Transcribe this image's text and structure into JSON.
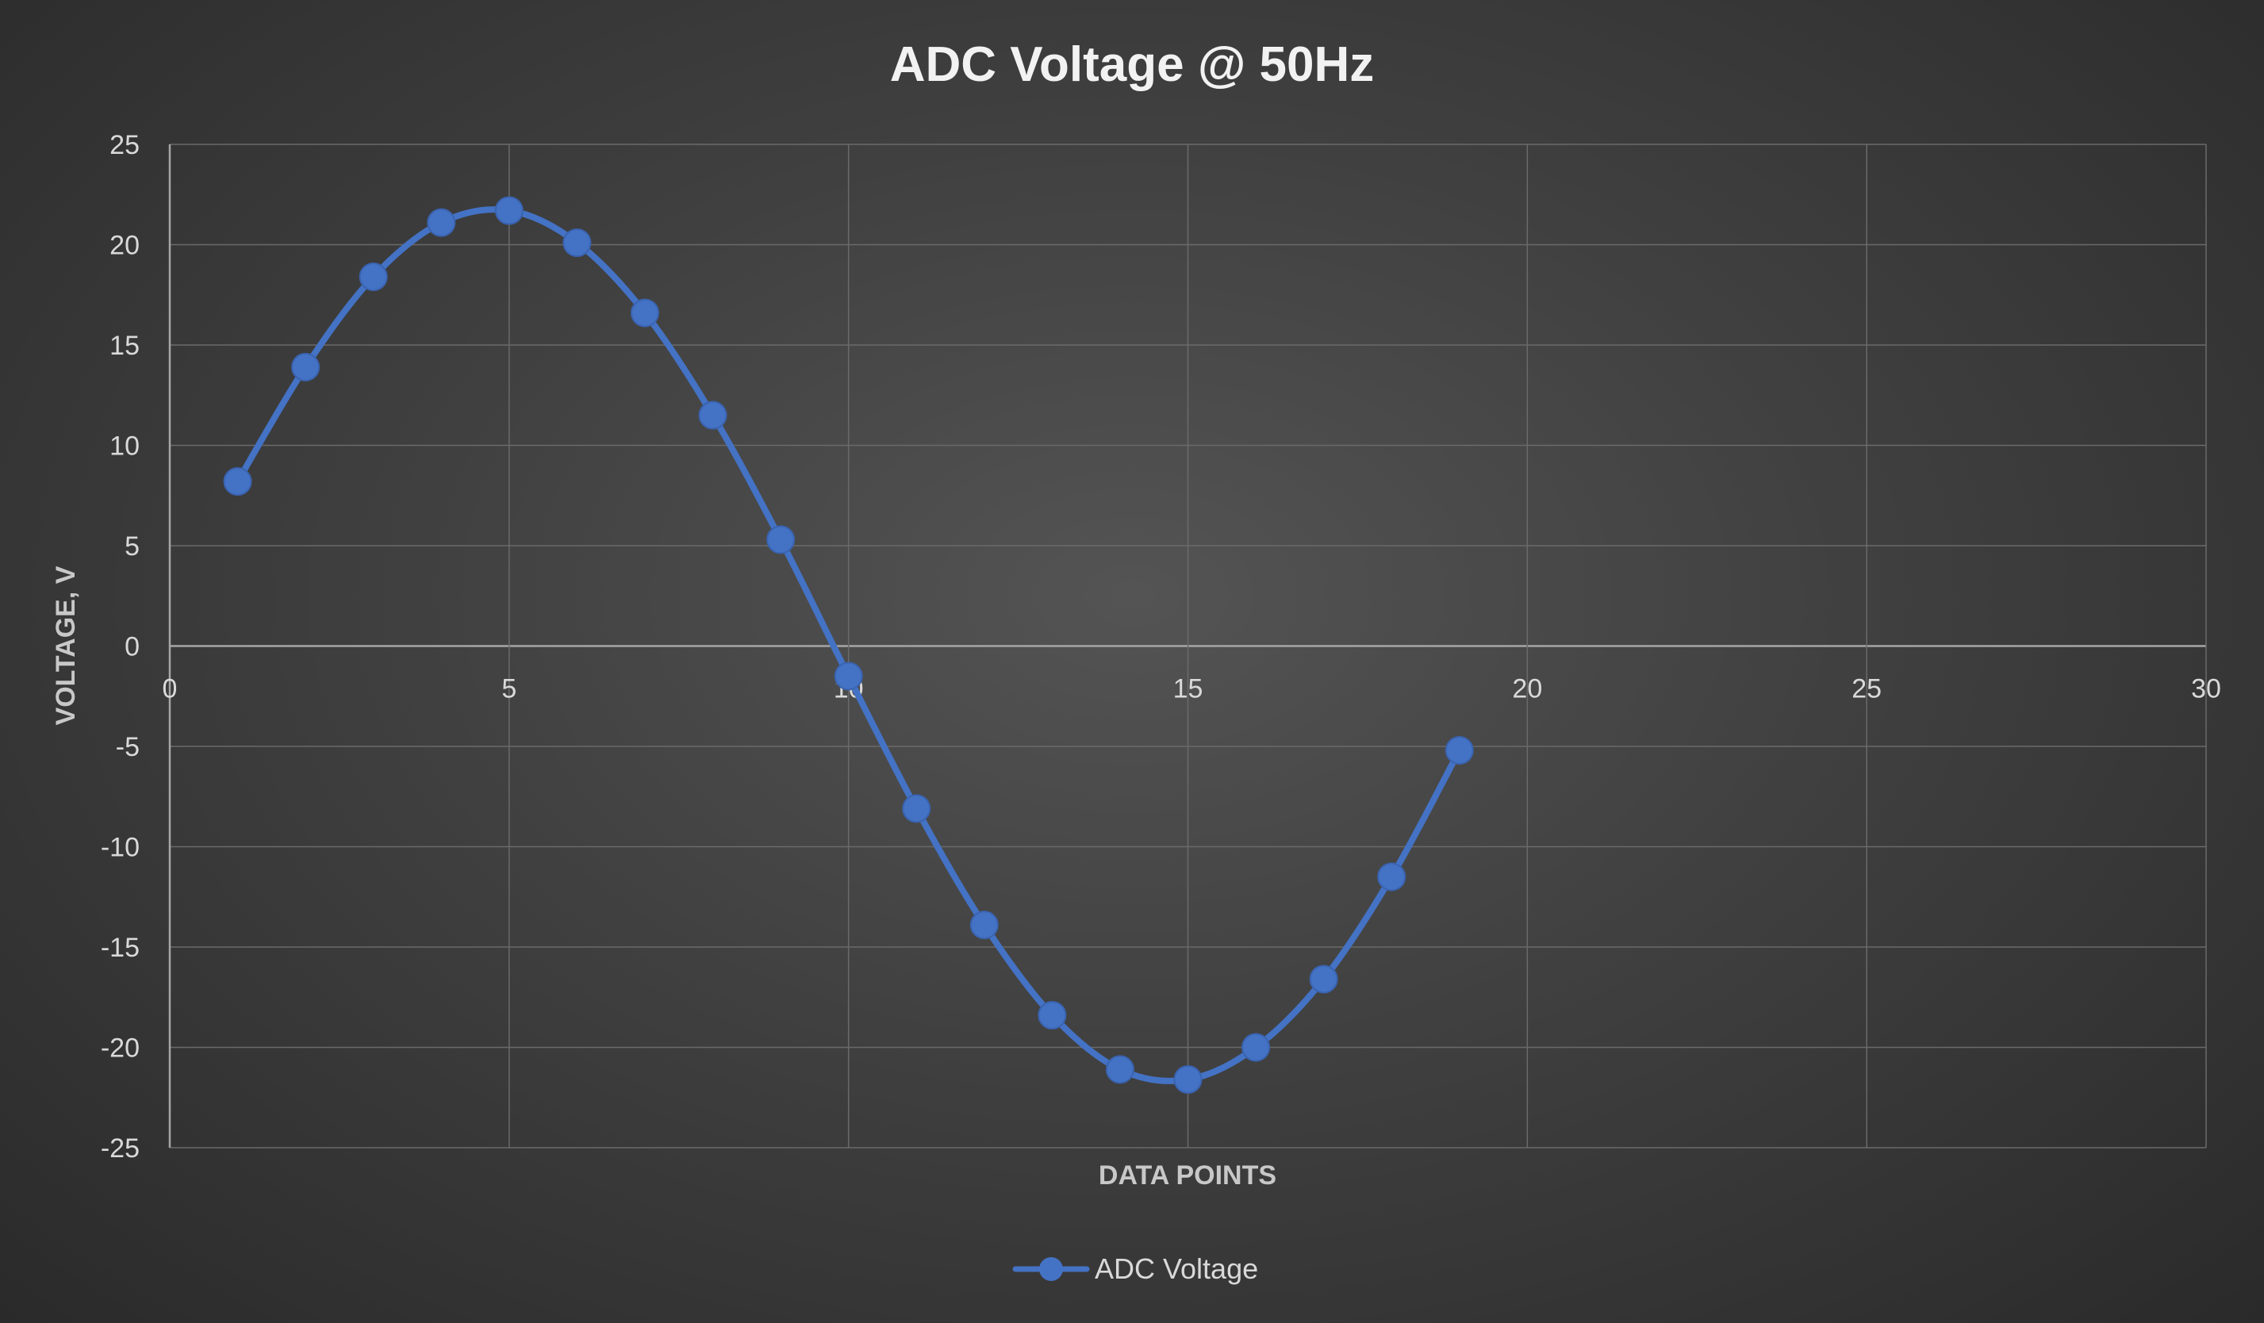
{
  "chart_data": {
    "type": "scatter",
    "title": "ADC Voltage @ 50Hz",
    "xlabel": "DATA POINTS",
    "ylabel": "VOLTAGE, V",
    "xlim": [
      0,
      30
    ],
    "ylim": [
      -25,
      25
    ],
    "x_ticks": [
      0,
      5,
      10,
      15,
      20,
      25,
      30
    ],
    "y_ticks": [
      25,
      20,
      15,
      10,
      5,
      0,
      -5,
      -10,
      -15,
      -20,
      -25
    ],
    "grid": true,
    "smooth": true,
    "legend": "bottom-center",
    "series": [
      {
        "name": "ADC Voltage",
        "color": "#4472c4",
        "points": [
          {
            "x": 1,
            "y": 8.2
          },
          {
            "x": 2,
            "y": 13.9
          },
          {
            "x": 3,
            "y": 18.4
          },
          {
            "x": 4,
            "y": 21.1
          },
          {
            "x": 5,
            "y": 21.7
          },
          {
            "x": 6,
            "y": 20.1
          },
          {
            "x": 7,
            "y": 16.6
          },
          {
            "x": 8,
            "y": 11.5
          },
          {
            "x": 9,
            "y": 5.3
          },
          {
            "x": 10,
            "y": -1.5
          },
          {
            "x": 11,
            "y": -8.1
          },
          {
            "x": 12,
            "y": -13.9
          },
          {
            "x": 13,
            "y": -18.4
          },
          {
            "x": 14,
            "y": -21.1
          },
          {
            "x": 15,
            "y": -21.6
          },
          {
            "x": 16,
            "y": -20.0
          },
          {
            "x": 17,
            "y": -16.6
          },
          {
            "x": 18,
            "y": -11.5
          },
          {
            "x": 19,
            "y": -5.2
          }
        ]
      }
    ]
  }
}
